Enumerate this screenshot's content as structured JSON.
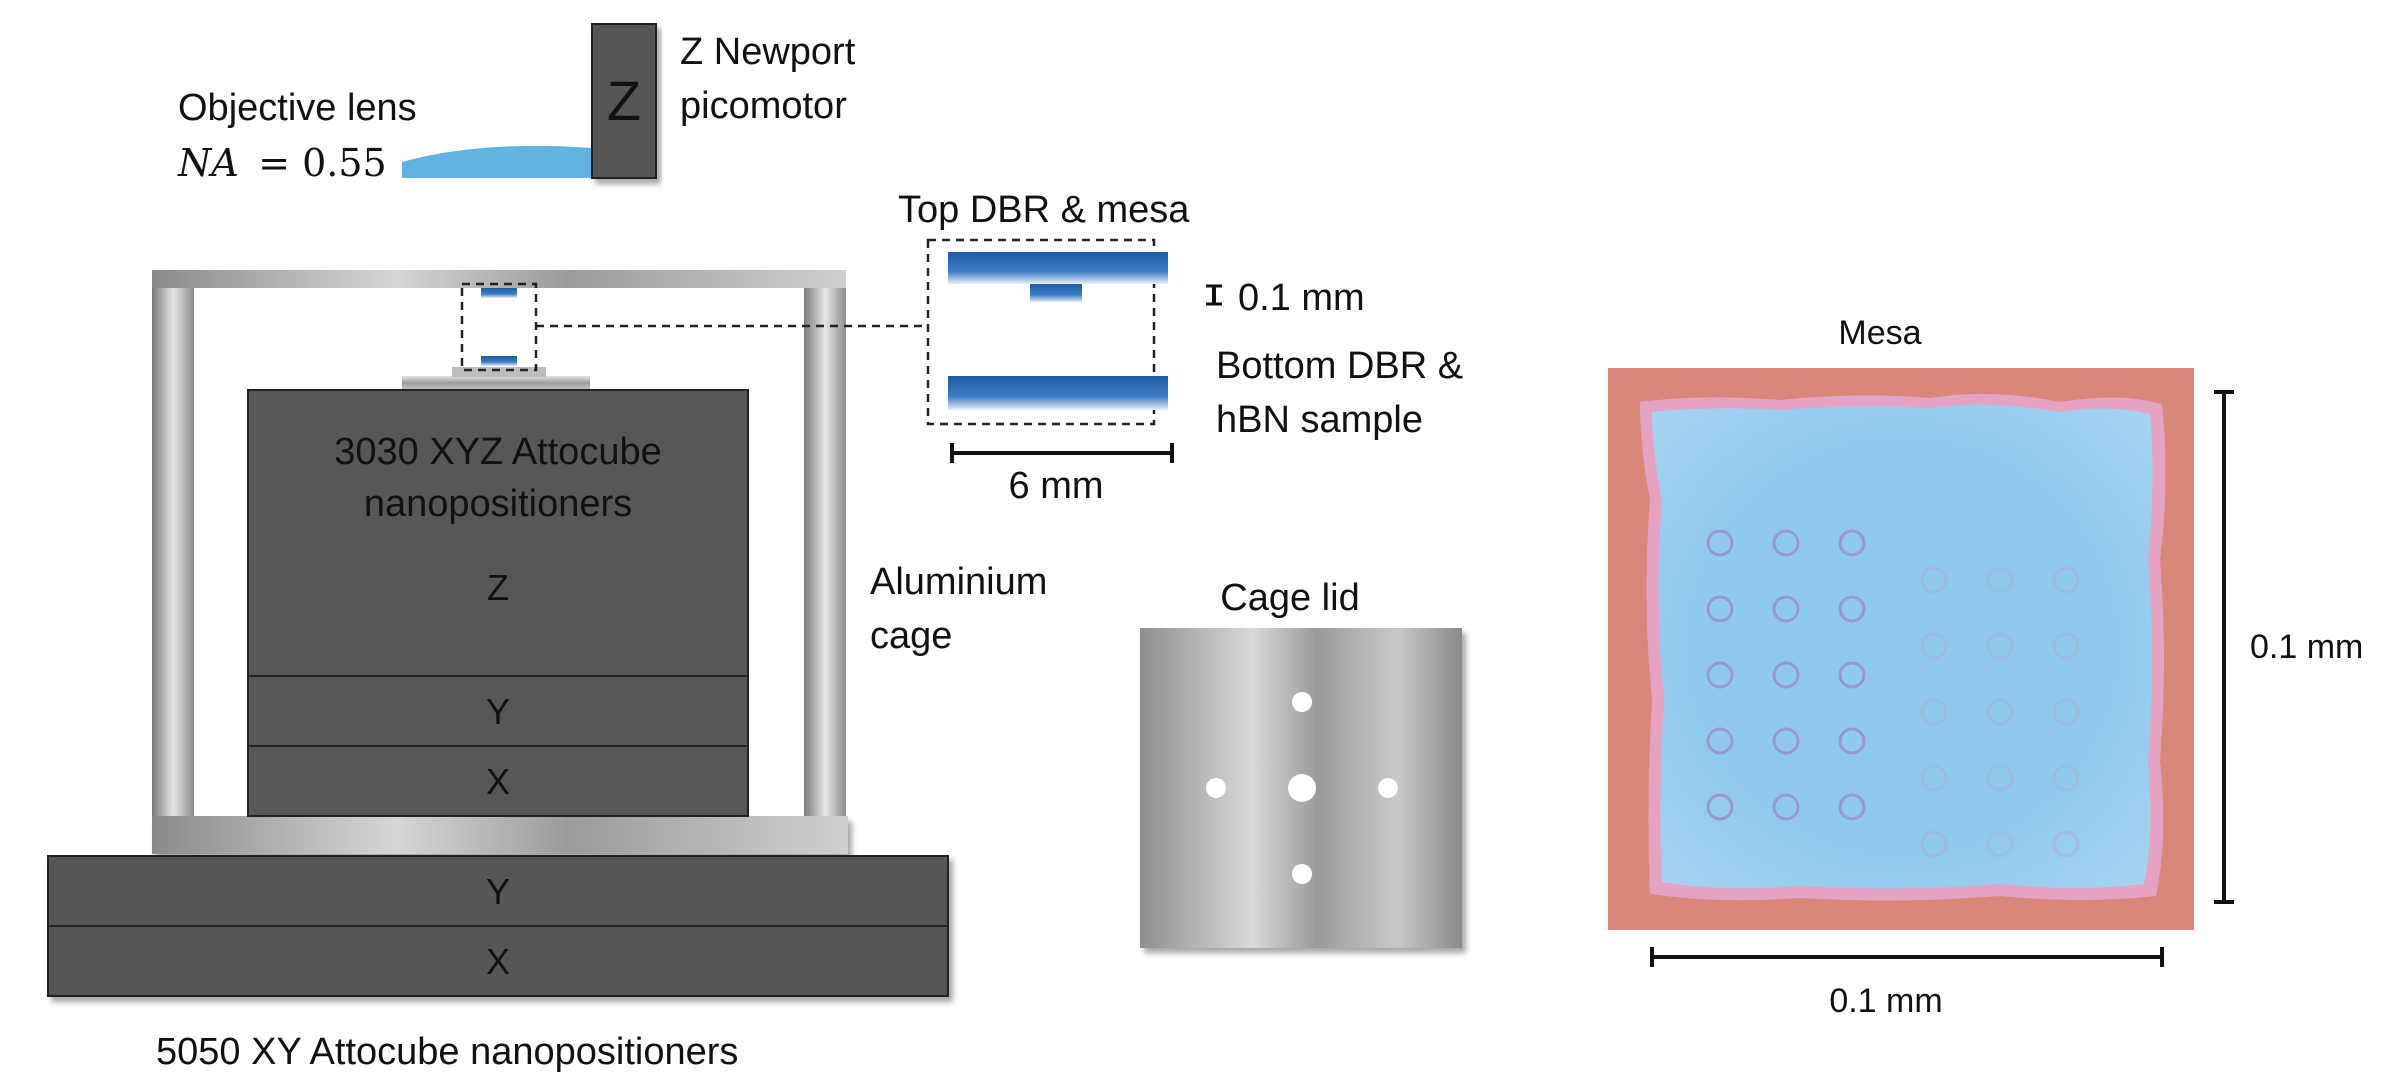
{
  "objective": {
    "title": "Objective lens",
    "na_symbol": "NA",
    "na_eq": "= 0.55"
  },
  "picomotor": {
    "letter": "Z",
    "line1": "Z Newport",
    "line2": "picomotor"
  },
  "inset": {
    "title": "Top DBR & mesa",
    "gap_label": "0.1 mm",
    "bottom_line1": "Bottom DBR &",
    "bottom_line2": "hBN sample",
    "width_label": "6 mm"
  },
  "stage3030": {
    "line1": "3030 XYZ Attocube",
    "line2": "nanopositioners",
    "z": "Z",
    "y": "Y",
    "x": "X"
  },
  "stage5050": {
    "y": "Y",
    "x": "X",
    "caption": "5050 XY Attocube nanopositioners"
  },
  "cage": {
    "line1": "Aluminium",
    "line2": "cage"
  },
  "cage_lid": {
    "title": "Cage lid"
  },
  "mesa": {
    "title": "Mesa",
    "height_label": "0.1 mm",
    "width_label": "0.1 mm"
  },
  "colors": {
    "lens_blue": "#63b3e0",
    "dbr_blue": "#2f6cb3",
    "stage_gray": "#575757",
    "mesa_pink": "#d8877a",
    "mesa_blue": "#8ec8ee"
  }
}
